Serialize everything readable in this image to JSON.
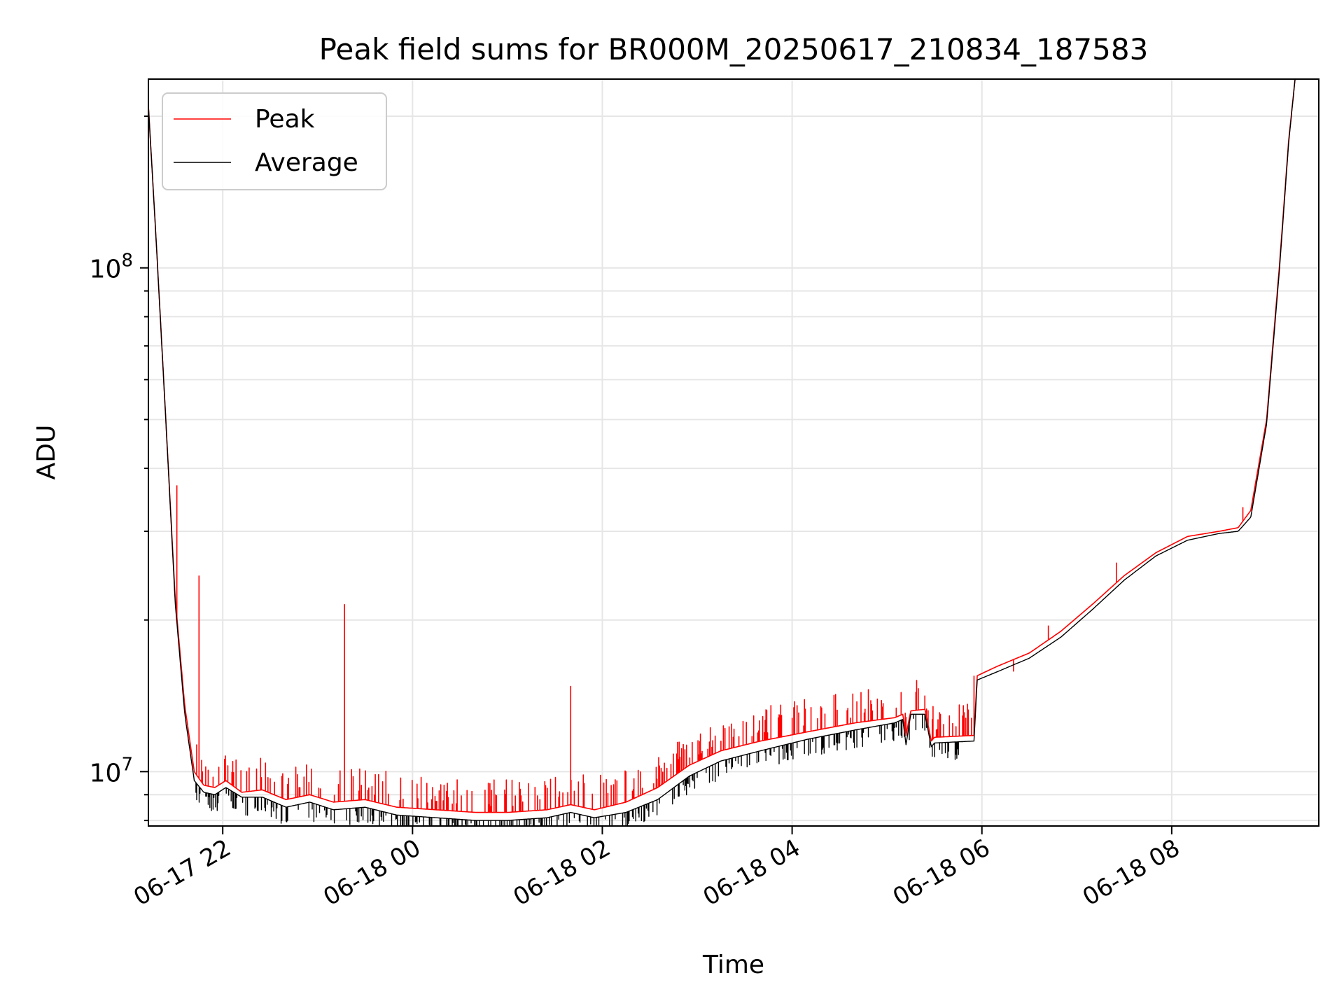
{
  "chart_data": {
    "type": "line",
    "title": "Peak field sums for BR000M_20250617_210834_187583",
    "xlabel": "Time",
    "ylabel": "ADU",
    "x_scale": "time",
    "y_scale": "log",
    "xlim": [
      "2025-06-17 21:13",
      "2025-06-18 09:33"
    ],
    "ylim": [
      7800000,
      237000000
    ],
    "grid": true,
    "legend_position": "upper-left",
    "x_ticks": [
      {
        "label": "06-17 22",
        "value": "2025-06-17 22:00"
      },
      {
        "label": "06-18 00",
        "value": "2025-06-18 00:00"
      },
      {
        "label": "06-18 02",
        "value": "2025-06-18 02:00"
      },
      {
        "label": "06-18 04",
        "value": "2025-06-18 04:00"
      },
      {
        "label": "06-18 06",
        "value": "2025-06-18 06:00"
      },
      {
        "label": "06-18 08",
        "value": "2025-06-18 08:00"
      }
    ],
    "y_ticks": [
      {
        "base": "10",
        "exp": "7",
        "value": 10000000
      },
      {
        "base": "10",
        "exp": "8",
        "value": 100000000
      }
    ],
    "series": [
      {
        "name": "Peak",
        "color": "#ff0000",
        "points": [
          [
            "2025-06-17 21:13",
            210000000
          ],
          [
            "2025-06-17 21:18",
            112000000
          ],
          [
            "2025-06-17 21:24",
            50000000
          ],
          [
            "2025-06-17 21:30",
            22000000
          ],
          [
            "2025-06-17 21:36",
            13500000
          ],
          [
            "2025-06-17 21:42",
            10000000
          ],
          [
            "2025-06-17 21:48",
            9400000
          ],
          [
            "2025-06-17 21:55",
            9300000
          ],
          [
            "2025-06-17 22:02",
            9600000
          ],
          [
            "2025-06-17 22:12",
            9100000
          ],
          [
            "2025-06-17 22:25",
            9200000
          ],
          [
            "2025-06-17 22:40",
            8800000
          ],
          [
            "2025-06-17 22:55",
            9000000
          ],
          [
            "2025-06-17 23:10",
            8700000
          ],
          [
            "2025-06-17 23:30",
            8800000
          ],
          [
            "2025-06-17 23:50",
            8500000
          ],
          [
            "2025-06-18 00:15",
            8400000
          ],
          [
            "2025-06-18 00:40",
            8300000
          ],
          [
            "2025-06-18 01:00",
            8300000
          ],
          [
            "2025-06-18 01:25",
            8400000
          ],
          [
            "2025-06-18 01:40",
            8600000
          ],
          [
            "2025-06-18 01:55",
            8400000
          ],
          [
            "2025-06-18 02:15",
            8700000
          ],
          [
            "2025-06-18 02:35",
            9300000
          ],
          [
            "2025-06-18 02:55",
            10300000
          ],
          [
            "2025-06-18 03:15",
            11000000
          ],
          [
            "2025-06-18 03:40",
            11500000
          ],
          [
            "2025-06-18 04:10",
            12000000
          ],
          [
            "2025-06-18 04:40",
            12500000
          ],
          [
            "2025-06-18 05:05",
            12800000
          ],
          [
            "2025-06-18 05:10",
            13000000
          ],
          [
            "2025-06-18 05:12",
            11800000
          ],
          [
            "2025-06-18 05:15",
            13200000
          ],
          [
            "2025-06-18 05:24",
            13300000
          ],
          [
            "2025-06-18 05:28",
            11500000
          ],
          [
            "2025-06-18 05:30",
            11700000
          ],
          [
            "2025-06-18 05:55",
            11800000
          ],
          [
            "2025-06-18 05:57",
            15500000
          ],
          [
            "2025-06-18 06:10",
            16200000
          ],
          [
            "2025-06-18 06:30",
            17200000
          ],
          [
            "2025-06-18 06:50",
            19000000
          ],
          [
            "2025-06-18 07:10",
            21500000
          ],
          [
            "2025-06-18 07:30",
            24500000
          ],
          [
            "2025-06-18 07:50",
            27200000
          ],
          [
            "2025-06-18 08:10",
            29300000
          ],
          [
            "2025-06-18 08:30",
            30000000
          ],
          [
            "2025-06-18 08:42",
            30500000
          ],
          [
            "2025-06-18 08:50",
            33000000
          ],
          [
            "2025-06-18 09:00",
            50000000
          ],
          [
            "2025-06-18 09:08",
            100000000
          ],
          [
            "2025-06-18 09:14",
            180000000
          ],
          [
            "2025-06-18 09:18",
            237000000
          ]
        ],
        "spikes": [
          [
            "2025-06-17 21:31",
            37000000
          ],
          [
            "2025-06-17 21:45",
            24500000
          ],
          [
            "2025-06-17 22:30",
            9700000
          ],
          [
            "2025-06-17 23:17",
            21500000
          ],
          [
            "2025-06-18 00:50",
            9200000
          ],
          [
            "2025-06-18 01:40",
            14800000
          ],
          [
            "2025-06-18 02:20",
            9700000
          ],
          [
            "2025-06-18 04:50",
            13500000
          ],
          [
            "2025-06-18 05:55",
            15500000
          ],
          [
            "2025-06-18 06:20",
            15800000
          ],
          [
            "2025-06-18 06:42",
            19500000
          ],
          [
            "2025-06-18 07:25",
            26000000
          ],
          [
            "2025-06-18 08:45",
            33500000
          ]
        ]
      },
      {
        "name": "Average",
        "color": "#000000",
        "points": [
          [
            "2025-06-17 21:13",
            210000000
          ],
          [
            "2025-06-17 21:18",
            112000000
          ],
          [
            "2025-06-17 21:24",
            50000000
          ],
          [
            "2025-06-17 21:30",
            21500000
          ],
          [
            "2025-06-17 21:36",
            13000000
          ],
          [
            "2025-06-17 21:42",
            9600000
          ],
          [
            "2025-06-17 21:48",
            9100000
          ],
          [
            "2025-06-17 21:55",
            9000000
          ],
          [
            "2025-06-17 22:02",
            9300000
          ],
          [
            "2025-06-17 22:12",
            8900000
          ],
          [
            "2025-06-17 22:25",
            8900000
          ],
          [
            "2025-06-17 22:40",
            8500000
          ],
          [
            "2025-06-17 22:55",
            8700000
          ],
          [
            "2025-06-17 23:10",
            8400000
          ],
          [
            "2025-06-17 23:30",
            8500000
          ],
          [
            "2025-06-17 23:50",
            8200000
          ],
          [
            "2025-06-18 00:15",
            8100000
          ],
          [
            "2025-06-18 00:40",
            8000000
          ],
          [
            "2025-06-18 01:00",
            8000000
          ],
          [
            "2025-06-18 01:25",
            8100000
          ],
          [
            "2025-06-18 01:40",
            8300000
          ],
          [
            "2025-06-18 01:55",
            8100000
          ],
          [
            "2025-06-18 02:15",
            8300000
          ],
          [
            "2025-06-18 02:35",
            8800000
          ],
          [
            "2025-06-18 02:55",
            9800000
          ],
          [
            "2025-06-18 03:15",
            10500000
          ],
          [
            "2025-06-18 03:40",
            11000000
          ],
          [
            "2025-06-18 04:10",
            11600000
          ],
          [
            "2025-06-18 04:40",
            12100000
          ],
          [
            "2025-06-18 05:05",
            12500000
          ],
          [
            "2025-06-18 05:10",
            12700000
          ],
          [
            "2025-06-18 05:12",
            11300000
          ],
          [
            "2025-06-18 05:15",
            13000000
          ],
          [
            "2025-06-18 05:24",
            13000000
          ],
          [
            "2025-06-18 05:28",
            11200000
          ],
          [
            "2025-06-18 05:30",
            11400000
          ],
          [
            "2025-06-18 05:55",
            11500000
          ],
          [
            "2025-06-18 05:57",
            15200000
          ],
          [
            "2025-06-18 06:10",
            15800000
          ],
          [
            "2025-06-18 06:30",
            16800000
          ],
          [
            "2025-06-18 06:50",
            18500000
          ],
          [
            "2025-06-18 07:10",
            21000000
          ],
          [
            "2025-06-18 07:30",
            24000000
          ],
          [
            "2025-06-18 07:50",
            26800000
          ],
          [
            "2025-06-18 08:10",
            28800000
          ],
          [
            "2025-06-18 08:30",
            29700000
          ],
          [
            "2025-06-18 08:42",
            30000000
          ],
          [
            "2025-06-18 08:50",
            32000000
          ],
          [
            "2025-06-18 09:00",
            49000000
          ],
          [
            "2025-06-18 09:08",
            98000000
          ],
          [
            "2025-06-18 09:14",
            178000000
          ],
          [
            "2025-06-18 09:18",
            237000000
          ]
        ]
      }
    ]
  }
}
